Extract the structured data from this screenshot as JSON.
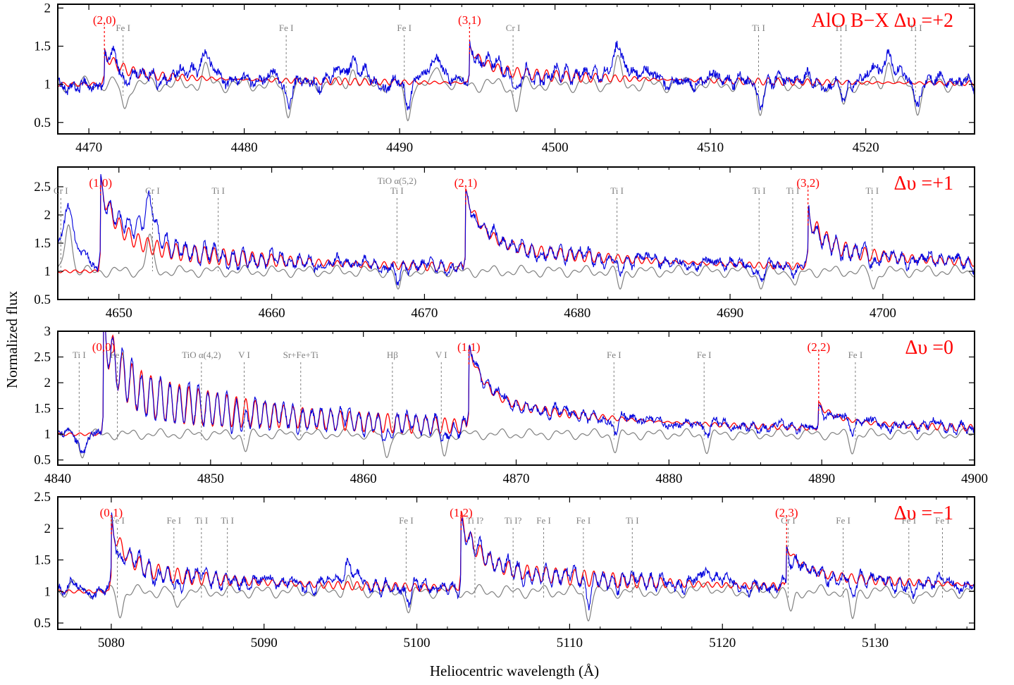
{
  "figure": {
    "ylabel": "Normalized flux",
    "xlabel": "Heliocentric wavelength (Å)"
  },
  "colors": {
    "observed": "#0000dd",
    "model_alo": "#ff0000",
    "template": "#808080",
    "marker": "#808080"
  },
  "chart_data": [
    {
      "type": "line",
      "title": "AlO B−X Δυ =+2",
      "xlim": [
        4468,
        4527
      ],
      "ylim": [
        0.35,
        2.05
      ],
      "xticks": [
        4470,
        4480,
        4490,
        4500,
        4510,
        4520
      ],
      "yticks": [
        0.5,
        1,
        1.5,
        2
      ],
      "ytick_labels": [
        "0.5",
        "1",
        "1.5",
        "2"
      ],
      "band_heads": [
        {
          "label": "(2,0)",
          "x": 4471.0,
          "peak": 1.35
        },
        {
          "label": "(3,1)",
          "x": 4494.5,
          "peak": 1.4
        }
      ],
      "line_ids": [
        {
          "label": "Fe I",
          "x": 4472.2
        },
        {
          "label": "Fe I",
          "x": 4482.7
        },
        {
          "label": "Fe I",
          "x": 4490.3
        },
        {
          "label": "Cr I",
          "x": 4497.3
        },
        {
          "label": "Ti I",
          "x": 4513.1
        },
        {
          "label": "Ti I",
          "x": 4518.4
        },
        {
          "label": "Ti I",
          "x": 4523.2
        }
      ],
      "absorptions": [
        [
          4472.3,
          0.35
        ],
        [
          4482.8,
          0.4
        ],
        [
          4490.5,
          0.5
        ],
        [
          4497.5,
          0.35
        ],
        [
          4513.2,
          0.3
        ],
        [
          4518.6,
          0.3
        ],
        [
          4523.3,
          0.35
        ]
      ],
      "emission_bumps": [
        [
          4477.5,
          0.2
        ],
        [
          4487.0,
          0.2
        ],
        [
          4492.5,
          0.25
        ],
        [
          4504.0,
          0.3
        ],
        [
          4521.5,
          0.3
        ]
      ],
      "series": [
        {
          "name": "",
          "role": "observed",
          "color": "#0000dd"
        },
        {
          "name": "",
          "role": "model",
          "color": "#ff0000"
        },
        {
          "name": "",
          "role": "template",
          "color": "#808080"
        }
      ]
    },
    {
      "type": "line",
      "title": "Δυ =+1",
      "xlim": [
        4646,
        4706
      ],
      "ylim": [
        0.5,
        2.85
      ],
      "xticks": [
        4650,
        4660,
        4670,
        4680,
        4690,
        4700
      ],
      "yticks": [
        0.5,
        1,
        1.5,
        2,
        2.5
      ],
      "ytick_labels": [
        "0.5",
        "1",
        "1.5",
        "2",
        "2.5"
      ],
      "band_heads": [
        {
          "label": "(1,0)",
          "x": 4648.8,
          "peak": 2.35
        },
        {
          "label": "(2,1)",
          "x": 4672.7,
          "peak": 2.15
        },
        {
          "label": "(3,2)",
          "x": 4695.1,
          "peak": 1.8
        }
      ],
      "line_ids": [
        {
          "label": "Cr I",
          "x": 4646.2
        },
        {
          "label": "Cr I",
          "x": 4652.2
        },
        {
          "label": "Ti I",
          "x": 4656.5
        },
        {
          "label": "TiO α(5,2)",
          "x": 4668.2,
          "sublabel": "Ti I"
        },
        {
          "label": "Ti I",
          "x": 4682.6
        },
        {
          "label": "Ti I",
          "x": 4691.9
        },
        {
          "label": "Ti I",
          "x": 4694.1
        },
        {
          "label": "Ti I",
          "x": 4699.3
        }
      ],
      "absorptions": [
        [
          4668.3,
          0.35
        ],
        [
          4682.8,
          0.3
        ],
        [
          4692.0,
          0.3
        ],
        [
          4694.3,
          0.3
        ],
        [
          4699.4,
          0.3
        ]
      ],
      "emission_bumps": [
        [
          4646.7,
          0.9
        ],
        [
          4652.0,
          0.6
        ]
      ],
      "series": [
        {
          "name": "",
          "role": "observed",
          "color": "#0000dd"
        },
        {
          "name": "",
          "role": "model",
          "color": "#ff0000"
        },
        {
          "name": "",
          "role": "template",
          "color": "#808080"
        }
      ]
    },
    {
      "type": "line",
      "title": "Δυ =0",
      "xlim": [
        4840,
        4900
      ],
      "ylim": [
        0.4,
        3.0
      ],
      "xticks": [
        4840,
        4850,
        4860,
        4870,
        4880,
        4890,
        4900
      ],
      "yticks": [
        0.5,
        1,
        1.5,
        2,
        2.5,
        3
      ],
      "ytick_labels": [
        "0.5",
        "1",
        "1.5",
        "2",
        "2.5",
        "3"
      ],
      "band_heads": [
        {
          "label": "(0,0)",
          "x": 4843.0,
          "peak": 2.55
        },
        {
          "label": "(1,1)",
          "x": 4866.9,
          "peak": 2.35
        },
        {
          "label": "(2,2)",
          "x": 4889.8,
          "peak": 1.4
        }
      ],
      "line_ids": [
        {
          "label": "Ti I",
          "x": 4841.4
        },
        {
          "label": "Fe I",
          "x": 4843.9
        },
        {
          "label": "TiO α(4,2)",
          "x": 4849.4
        },
        {
          "label": "V I",
          "x": 4852.2
        },
        {
          "label": "Sr+Fe+Ti",
          "x": 4855.9
        },
        {
          "label": "Hβ",
          "x": 4861.9
        },
        {
          "label": "V I",
          "x": 4865.1
        },
        {
          "label": "Fe I",
          "x": 4876.4
        },
        {
          "label": "Fe I",
          "x": 4882.3
        },
        {
          "label": "Fe I",
          "x": 4892.2
        }
      ],
      "absorptions": [
        [
          4841.6,
          0.45
        ],
        [
          4852.3,
          0.3
        ],
        [
          4861.5,
          0.45
        ],
        [
          4865.3,
          0.4
        ],
        [
          4876.5,
          0.3
        ],
        [
          4882.5,
          0.3
        ],
        [
          4892.0,
          0.3
        ]
      ],
      "emission_bumps": [],
      "series": [
        {
          "name": "",
          "role": "observed",
          "color": "#0000dd"
        },
        {
          "name": "",
          "role": "model",
          "color": "#ff0000"
        },
        {
          "name": "",
          "role": "template",
          "color": "#808080"
        }
      ]
    },
    {
      "type": "line",
      "title": "Δυ =−1",
      "xlim": [
        5076.5,
        5136.5
      ],
      "ylim": [
        0.4,
        2.5
      ],
      "xticks": [
        5080,
        5090,
        5100,
        5110,
        5120,
        5130
      ],
      "yticks": [
        0.5,
        1,
        1.5,
        2,
        2.5
      ],
      "ytick_labels": [
        "0.5",
        "1",
        "1.5",
        "2",
        "2.5"
      ],
      "band_heads": [
        {
          "label": "(0,1)",
          "x": 5080.0,
          "peak": 1.9
        },
        {
          "label": "(1,2)",
          "x": 5102.9,
          "peak": 1.95
        },
        {
          "label": "(2,3)",
          "x": 5124.2,
          "peak": 1.55
        }
      ],
      "line_ids": [
        {
          "label": "Fe I",
          "x": 5080.4
        },
        {
          "label": "Fe I",
          "x": 5084.1
        },
        {
          "label": "Ti I",
          "x": 5085.9
        },
        {
          "label": "Ti I",
          "x": 5087.6
        },
        {
          "label": "Fe I",
          "x": 5099.3
        },
        {
          "label": "Ti I?",
          "x": 5103.8
        },
        {
          "label": "Ti I?",
          "x": 5106.3
        },
        {
          "label": "Fe I",
          "x": 5108.3
        },
        {
          "label": "Fe I",
          "x": 5110.9
        },
        {
          "label": "Ti I",
          "x": 5114.1
        },
        {
          "label": "Cr I",
          "x": 5124.3
        },
        {
          "label": "Fe I",
          "x": 5127.9
        },
        {
          "label": "Fe I",
          "x": 5132.2
        },
        {
          "label": "Fe I",
          "x": 5134.4
        }
      ],
      "absorptions": [
        [
          5080.6,
          0.35
        ],
        [
          5084.3,
          0.3
        ],
        [
          5099.5,
          0.3
        ],
        [
          5111.2,
          0.4
        ],
        [
          5124.5,
          0.35
        ],
        [
          5128.5,
          0.45
        ],
        [
          5132.5,
          0.3
        ]
      ],
      "emission_bumps": [
        [
          5077.5,
          0.1
        ],
        [
          5095.5,
          0.2
        ],
        [
          5119.0,
          0.15
        ]
      ],
      "series": [
        {
          "name": "",
          "role": "observed",
          "color": "#0000dd"
        },
        {
          "name": "",
          "role": "model",
          "color": "#ff0000"
        },
        {
          "name": "",
          "role": "template",
          "color": "#808080"
        }
      ]
    }
  ]
}
